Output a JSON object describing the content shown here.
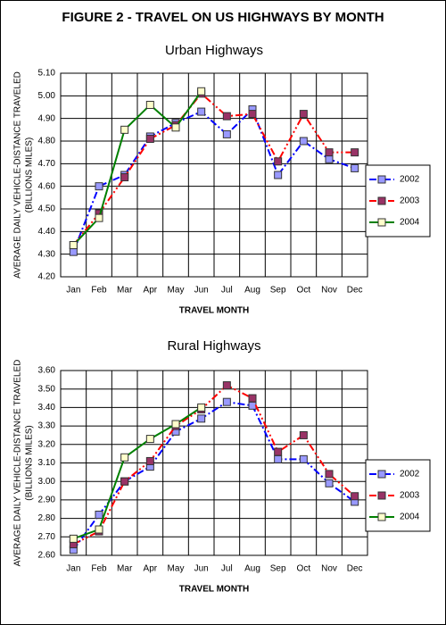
{
  "title": "FIGURE 2 - TRAVEL ON US HIGHWAYS BY MONTH",
  "chart_data": [
    {
      "type": "line",
      "title": "Urban Highways",
      "x_label": "TRAVEL MONTH",
      "y_label": [
        "AVERAGE DAILY VEHICLE-DISTANCE TRAVELED",
        "(BILLIONS MILES)"
      ],
      "categories": [
        "Jan",
        "Feb",
        "Mar",
        "Apr",
        "May",
        "Jun",
        "Jul",
        "Aug",
        "Sep",
        "Oct",
        "Nov",
        "Dec"
      ],
      "series": [
        {
          "name": "2002",
          "color": "#0000ff",
          "marker_color": "#9999ff",
          "line_style": "dash-dot",
          "values": [
            4.31,
            4.6,
            4.65,
            4.82,
            4.88,
            4.93,
            4.83,
            4.94,
            4.65,
            4.8,
            4.72,
            4.68
          ]
        },
        {
          "name": "2003",
          "color": "#ff0000",
          "marker_color": "#993366",
          "line_style": "dash-dot-dot",
          "values": [
            4.34,
            4.48,
            4.64,
            4.81,
            4.87,
            5.01,
            4.91,
            4.92,
            4.71,
            4.92,
            4.75,
            4.75
          ]
        },
        {
          "name": "2004",
          "color": "#008000",
          "marker_color": "#ffffcc",
          "line_style": "solid",
          "values": [
            4.34,
            4.46,
            4.85,
            4.96,
            4.86,
            5.02,
            null,
            null,
            null,
            null,
            null,
            null
          ]
        }
      ],
      "ylim": [
        4.2,
        5.1
      ],
      "yticks": [
        {
          "value": 4.2,
          "label": "4.20"
        },
        {
          "value": 4.3,
          "label": "4.30"
        },
        {
          "value": 4.4,
          "label": "4.40"
        },
        {
          "value": 4.5,
          "label": "4.50"
        },
        {
          "value": 4.6,
          "label": "4.60"
        },
        {
          "value": 4.7,
          "label": "4.70"
        },
        {
          "value": 4.8,
          "label": "4.80"
        },
        {
          "value": 4.9,
          "label": "4.90"
        },
        {
          "value": 5.0,
          "label": "5.00"
        },
        {
          "value": 5.1,
          "label": "5.10"
        }
      ],
      "grid": true,
      "legend": "right"
    },
    {
      "type": "line",
      "title": "Rural Highways",
      "x_label": "TRAVEL MONTH",
      "y_label": [
        "AVERAGE DAILY VEHICLE-DISTANCE TRAVELED",
        "(BILLIONS MILES)"
      ],
      "categories": [
        "Jan",
        "Feb",
        "Mar",
        "Apr",
        "May",
        "Jun",
        "Jul",
        "Aug",
        "Sep",
        "Oct",
        "Nov",
        "Dec"
      ],
      "series": [
        {
          "name": "2002",
          "color": "#0000ff",
          "marker_color": "#9999ff",
          "line_style": "dash-dot",
          "values": [
            2.63,
            2.82,
            3.0,
            3.08,
            3.27,
            3.34,
            3.43,
            3.41,
            3.12,
            3.12,
            2.99,
            2.89
          ]
        },
        {
          "name": "2003",
          "color": "#ff0000",
          "marker_color": "#993366",
          "line_style": "dash-dot-dot",
          "values": [
            2.66,
            2.73,
            3.0,
            3.11,
            3.3,
            3.39,
            3.52,
            3.45,
            3.16,
            3.25,
            3.04,
            2.92
          ]
        },
        {
          "name": "2004",
          "color": "#008000",
          "marker_color": "#ffffcc",
          "line_style": "solid",
          "values": [
            2.69,
            2.74,
            3.13,
            3.23,
            3.31,
            3.4,
            null,
            null,
            null,
            null,
            null,
            null
          ]
        }
      ],
      "ylim": [
        2.6,
        3.6
      ],
      "yticks": [
        {
          "value": 2.6,
          "label": "2.60"
        },
        {
          "value": 2.7,
          "label": "2.70"
        },
        {
          "value": 2.8,
          "label": "2.80"
        },
        {
          "value": 2.9,
          "label": "2.90"
        },
        {
          "value": 3.0,
          "label": "3.00"
        },
        {
          "value": 3.1,
          "label": "3.10"
        },
        {
          "value": 3.2,
          "label": "3.20"
        },
        {
          "value": 3.3,
          "label": "3.30"
        },
        {
          "value": 3.4,
          "label": "3.40"
        },
        {
          "value": 3.5,
          "label": "3.50"
        },
        {
          "value": 3.6,
          "label": "3.60"
        }
      ],
      "grid": true,
      "legend": "right"
    }
  ]
}
